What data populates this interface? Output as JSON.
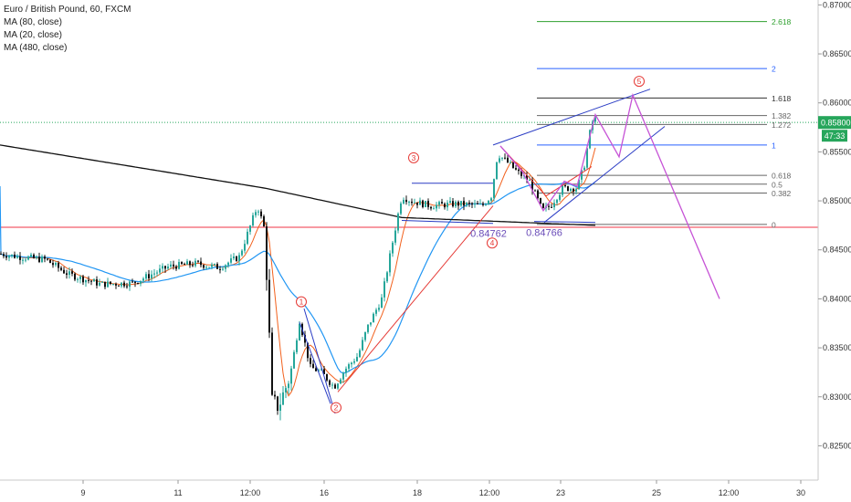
{
  "chart_data": {
    "type": "candlestick",
    "title": "Euro / British Pound, 60, FXCM",
    "indicators": [
      "MA (80, close)",
      "MA (20, close)",
      "MA (480, close)"
    ],
    "y_axis": {
      "ticks": [
        "0.87000",
        "0.86500",
        "0.86000",
        "0.85500",
        "0.85000",
        "0.84500",
        "0.84000",
        "0.83500",
        "0.83000",
        "0.82500"
      ],
      "range": [
        0.8215,
        0.8705
      ],
      "position": "right"
    },
    "x_axis": {
      "ticks": [
        "9",
        "11",
        "12:00",
        "16",
        "18",
        "12:00",
        "23",
        "25",
        "12:00",
        "30"
      ]
    },
    "current_price": "0.85800",
    "countdown": "47:33",
    "horizontal_level": 0.8473,
    "fib_levels": [
      {
        "label": "2.618",
        "value": 0.8683,
        "color": "#2ea02e"
      },
      {
        "label": "2",
        "value": 0.8635,
        "color": "#2962ff"
      },
      {
        "label": "1.618",
        "value": 0.8605,
        "color": "#333333"
      },
      {
        "label": "1.382",
        "value": 0.8587,
        "color": "#666666"
      },
      {
        "label": "1.272",
        "value": 0.8578,
        "color": "#666666"
      },
      {
        "label": "1",
        "value": 0.8557,
        "color": "#2962ff"
      },
      {
        "label": "0.618",
        "value": 0.8526,
        "color": "#666666"
      },
      {
        "label": "0.5",
        "value": 0.8517,
        "color": "#666666"
      },
      {
        "label": "0.382",
        "value": 0.8508,
        "color": "#666666"
      },
      {
        "label": "0",
        "value": 0.8476,
        "color": "#666666"
      }
    ],
    "annotations": [
      {
        "label": "0.84762",
        "value": 0.84762
      },
      {
        "label": "0.84766",
        "value": 0.84766
      }
    ],
    "wave_labels": [
      "1",
      "2",
      "3",
      "4",
      "5"
    ],
    "grid": false,
    "colors": {
      "up": "#26a69a",
      "down": "#111111",
      "ma80": "#f2611d",
      "ma20": "#2196f3",
      "ma480": "#111111",
      "hline": "#f23645",
      "wave": "#e53935",
      "projection": "#c653d6",
      "channel": "#2a3cc4",
      "price_tag": "#26a65b",
      "annotation": "#6a4cb8"
    }
  }
}
